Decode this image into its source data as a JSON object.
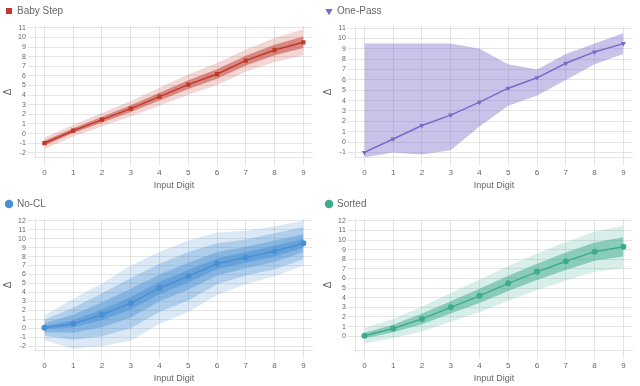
{
  "chart_data": [
    {
      "type": "line",
      "xlabel": "Input Digit",
      "ylabel": "Δ",
      "x": [
        0,
        1,
        2,
        3,
        4,
        5,
        6,
        7,
        8,
        9
      ],
      "xlim": [
        -0.3,
        9.3
      ],
      "xticks": [
        0,
        1,
        2,
        3,
        4,
        5,
        6,
        7,
        8,
        9
      ],
      "ylim": [
        -2.5,
        11.2
      ],
      "yticks": [
        -2,
        -1,
        0,
        1,
        2,
        3,
        4,
        5,
        6,
        7,
        8,
        9,
        10,
        11
      ],
      "grid": true,
      "legend": "upper left",
      "series": [
        {
          "name": "Baby Step",
          "color": "#c0392b",
          "marker": "square",
          "values": [
            -1.0,
            0.3,
            1.45,
            2.6,
            3.85,
            5.1,
            6.2,
            7.6,
            8.7,
            9.5
          ],
          "bands": [
            {
              "lower": [
                -1.6,
                -0.3,
                0.75,
                1.8,
                2.9,
                4.05,
                5.05,
                6.45,
                7.45,
                8.15
              ],
              "upper": [
                -0.4,
                0.9,
                2.15,
                3.4,
                4.8,
                6.15,
                7.35,
                8.75,
                9.95,
                10.85
              ]
            },
            {
              "lower": [
                -1.25,
                0.05,
                1.15,
                2.25,
                3.45,
                4.65,
                5.7,
                7.1,
                8.15,
                8.9
              ],
              "upper": [
                -0.75,
                0.55,
                1.75,
                2.95,
                4.25,
                5.55,
                6.7,
                8.1,
                9.25,
                10.1
              ]
            }
          ]
        }
      ]
    },
    {
      "type": "line",
      "xlabel": "Input Digit",
      "ylabel": "Δ",
      "x": [
        0,
        1,
        2,
        3,
        4,
        5,
        6,
        7,
        8,
        9
      ],
      "xlim": [
        -0.3,
        9.3
      ],
      "xticks": [
        0,
        1,
        2,
        3,
        4,
        5,
        6,
        7,
        8,
        9
      ],
      "ylim": [
        -1.5,
        11.2
      ],
      "yticks": [
        -1,
        0,
        1,
        2,
        3,
        4,
        5,
        6,
        7,
        8,
        9,
        10,
        11
      ],
      "grid": true,
      "legend": "upper left",
      "series": [
        {
          "name": "One-Pass",
          "color": "#7b68c8",
          "marker": "triangle_down",
          "values": [
            -1.0,
            0.3,
            1.6,
            2.6,
            3.85,
            5.2,
            6.2,
            7.6,
            8.7,
            9.5
          ],
          "bands": [
            {
              "lower": [
                -1.5,
                -1.0,
                -1.2,
                -0.8,
                1.5,
                3.5,
                4.5,
                6.0,
                7.5,
                8.5
              ],
              "upper": [
                9.5,
                9.5,
                9.5,
                9.5,
                9.0,
                7.5,
                7.0,
                8.5,
                9.5,
                10.5
              ]
            }
          ]
        }
      ]
    },
    {
      "type": "line",
      "xlabel": "Input Digit",
      "ylabel": "Δ",
      "x": [
        0,
        1,
        2,
        3,
        4,
        5,
        6,
        7,
        8,
        9
      ],
      "xlim": [
        -0.3,
        9.3
      ],
      "xticks": [
        0,
        1,
        2,
        3,
        4,
        5,
        6,
        7,
        8,
        9
      ],
      "ylim": [
        -2.5,
        12.2
      ],
      "yticks": [
        -2,
        -1,
        0,
        1,
        2,
        3,
        4,
        5,
        6,
        7,
        8,
        9,
        10,
        11,
        12
      ],
      "grid": true,
      "legend": "upper left",
      "series": [
        {
          "name": "No-CL",
          "color": "#4a90d4",
          "marker": "circle",
          "values": [
            0.05,
            0.5,
            1.5,
            2.8,
            4.5,
            5.8,
            7.2,
            7.9,
            8.6,
            9.5
          ],
          "bands": [
            {
              "lower": [
                -1.35,
                -2.3,
                -2.0,
                -1.4,
                0.5,
                1.8,
                3.7,
                4.9,
                5.8,
                7.0
              ],
              "upper": [
                1.45,
                3.3,
                5.0,
                7.0,
                8.5,
                9.8,
                10.7,
                10.9,
                11.4,
                12.0
              ]
            },
            {
              "lower": [
                -0.85,
                -1.3,
                -0.9,
                0.0,
                1.8,
                3.1,
                4.9,
                5.9,
                6.6,
                7.7
              ],
              "upper": [
                0.95,
                2.3,
                3.9,
                5.6,
                7.2,
                8.5,
                9.5,
                9.9,
                10.6,
                11.3
              ]
            },
            {
              "lower": [
                -0.45,
                -0.5,
                0.1,
                1.2,
                3.0,
                4.3,
                5.9,
                6.7,
                7.4,
                8.5
              ],
              "upper": [
                0.55,
                1.5,
                2.9,
                4.4,
                6.0,
                7.3,
                8.5,
                9.1,
                9.8,
                10.5
              ]
            },
            {
              "lower": [
                -0.15,
                0.1,
                0.9,
                2.1,
                3.8,
                5.1,
                6.6,
                7.3,
                8.0,
                9.0
              ],
              "upper": [
                0.25,
                0.9,
                2.1,
                3.5,
                5.2,
                6.5,
                7.8,
                8.5,
                9.2,
                10.0
              ]
            }
          ]
        }
      ]
    },
    {
      "type": "line",
      "xlabel": "Input Digit",
      "ylabel": "Δ",
      "x": [
        0,
        1,
        2,
        3,
        4,
        5,
        6,
        7,
        8,
        9
      ],
      "xlim": [
        -0.3,
        9.3
      ],
      "xticks": [
        0,
        1,
        2,
        3,
        4,
        5,
        6,
        7,
        8,
        9
      ],
      "ylim": [
        -1.5,
        12.2
      ],
      "yticks": [
        0,
        1,
        2,
        3,
        4,
        5,
        6,
        7,
        8,
        9,
        10,
        11,
        12
      ],
      "grid": true,
      "legend": "upper left",
      "series": [
        {
          "name": "Sorted",
          "color": "#3dab8e",
          "marker": "circle",
          "values": [
            0.05,
            0.8,
            1.8,
            3.0,
            4.2,
            5.5,
            6.7,
            7.8,
            8.8,
            9.3
          ],
          "bands": [
            {
              "lower": [
                -0.75,
                -0.2,
                0.5,
                1.5,
                2.5,
                3.7,
                4.8,
                5.8,
                6.7,
                7.1
              ],
              "upper": [
                0.85,
                1.8,
                3.1,
                4.5,
                5.9,
                7.3,
                8.6,
                9.8,
                10.9,
                11.5
              ]
            },
            {
              "lower": [
                -0.25,
                0.4,
                1.25,
                2.35,
                3.45,
                4.7,
                5.85,
                6.9,
                7.85,
                8.3
              ],
              "upper": [
                0.35,
                1.2,
                2.35,
                3.65,
                4.95,
                6.3,
                7.55,
                8.7,
                9.75,
                10.3
              ]
            }
          ]
        }
      ]
    }
  ]
}
